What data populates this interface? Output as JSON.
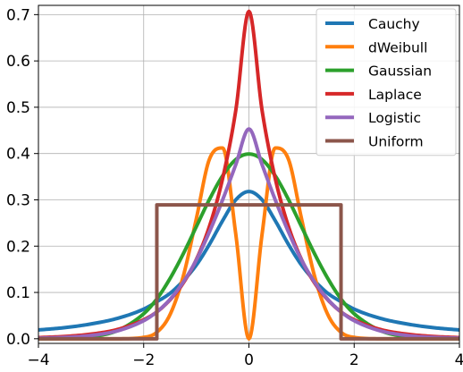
{
  "chart_data": {
    "type": "line",
    "title": "",
    "xlabel": "",
    "ylabel": "",
    "xlim": [
      -4,
      4
    ],
    "ylim": [
      -0.01,
      0.72
    ],
    "xticks": [
      -4,
      -2,
      0,
      2,
      4
    ],
    "yticks": [
      0.0,
      0.1,
      0.2,
      0.3,
      0.4,
      0.5,
      0.6,
      0.7
    ],
    "xtick_labels": [
      "−4",
      "−2",
      "0",
      "2",
      "4"
    ],
    "ytick_labels": [
      "0.0",
      "0.1",
      "0.2",
      "0.3",
      "0.4",
      "0.5",
      "0.6",
      "0.7"
    ],
    "grid": true,
    "legend_position": "top-right",
    "x": [
      -4.0,
      -3.5,
      -3.0,
      -2.5,
      -2.0,
      -1.75,
      -1.5,
      -1.25,
      -1.0,
      -0.75,
      -0.5,
      -0.25,
      0.0,
      0.25,
      0.5,
      0.75,
      1.0,
      1.25,
      1.5,
      1.75,
      2.0,
      2.5,
      3.0,
      3.5,
      4.0
    ],
    "series": [
      {
        "name": "Cauchy",
        "color": "#1f77b4",
        "values": [
          0.019,
          0.024,
          0.032,
          0.044,
          0.064,
          0.08,
          0.098,
          0.125,
          0.159,
          0.204,
          0.255,
          0.3,
          0.318,
          0.3,
          0.255,
          0.204,
          0.159,
          0.125,
          0.098,
          0.08,
          0.064,
          0.044,
          0.032,
          0.024,
          0.019
        ]
      },
      {
        "name": "dWeibull",
        "color": "#ff7f0e",
        "values": [
          0.0,
          0.0,
          0.0,
          0.0,
          0.003,
          0.014,
          0.052,
          0.134,
          0.259,
          0.388,
          0.412,
          0.226,
          0.0,
          0.226,
          0.412,
          0.388,
          0.259,
          0.134,
          0.052,
          0.014,
          0.003,
          0.0,
          0.0,
          0.0,
          0.0
        ]
      },
      {
        "name": "Gaussian",
        "color": "#2ca02c",
        "values": [
          0.0001,
          0.0009,
          0.0044,
          0.0175,
          0.054,
          0.086,
          0.13,
          0.183,
          0.242,
          0.301,
          0.352,
          0.387,
          0.399,
          0.387,
          0.352,
          0.301,
          0.242,
          0.183,
          0.13,
          0.086,
          0.054,
          0.0175,
          0.0044,
          0.0009,
          0.0001
        ]
      },
      {
        "name": "Laplace",
        "color": "#d62728",
        "values": [
          0.0025,
          0.005,
          0.01,
          0.02,
          0.041,
          0.058,
          0.084,
          0.12,
          0.171,
          0.243,
          0.346,
          0.493,
          0.707,
          0.493,
          0.346,
          0.243,
          0.171,
          0.12,
          0.084,
          0.058,
          0.041,
          0.02,
          0.01,
          0.005,
          0.0025
        ]
      },
      {
        "name": "Logistic",
        "color": "#9467bd",
        "values": [
          0.0012,
          0.003,
          0.0071,
          0.017,
          0.039,
          0.058,
          0.085,
          0.122,
          0.17,
          0.231,
          0.3,
          0.376,
          0.453,
          0.376,
          0.3,
          0.231,
          0.17,
          0.122,
          0.085,
          0.058,
          0.039,
          0.017,
          0.0071,
          0.003,
          0.0012
        ]
      },
      {
        "name": "Uniform",
        "color": "#8c564b",
        "values": [
          0.0,
          0.0,
          0.0,
          0.0,
          0.0,
          0.289,
          0.289,
          0.289,
          0.289,
          0.289,
          0.289,
          0.289,
          0.289,
          0.289,
          0.289,
          0.289,
          0.289,
          0.289,
          0.289,
          0.289,
          0.0,
          0.0,
          0.0,
          0.0,
          0.0
        ]
      }
    ]
  }
}
